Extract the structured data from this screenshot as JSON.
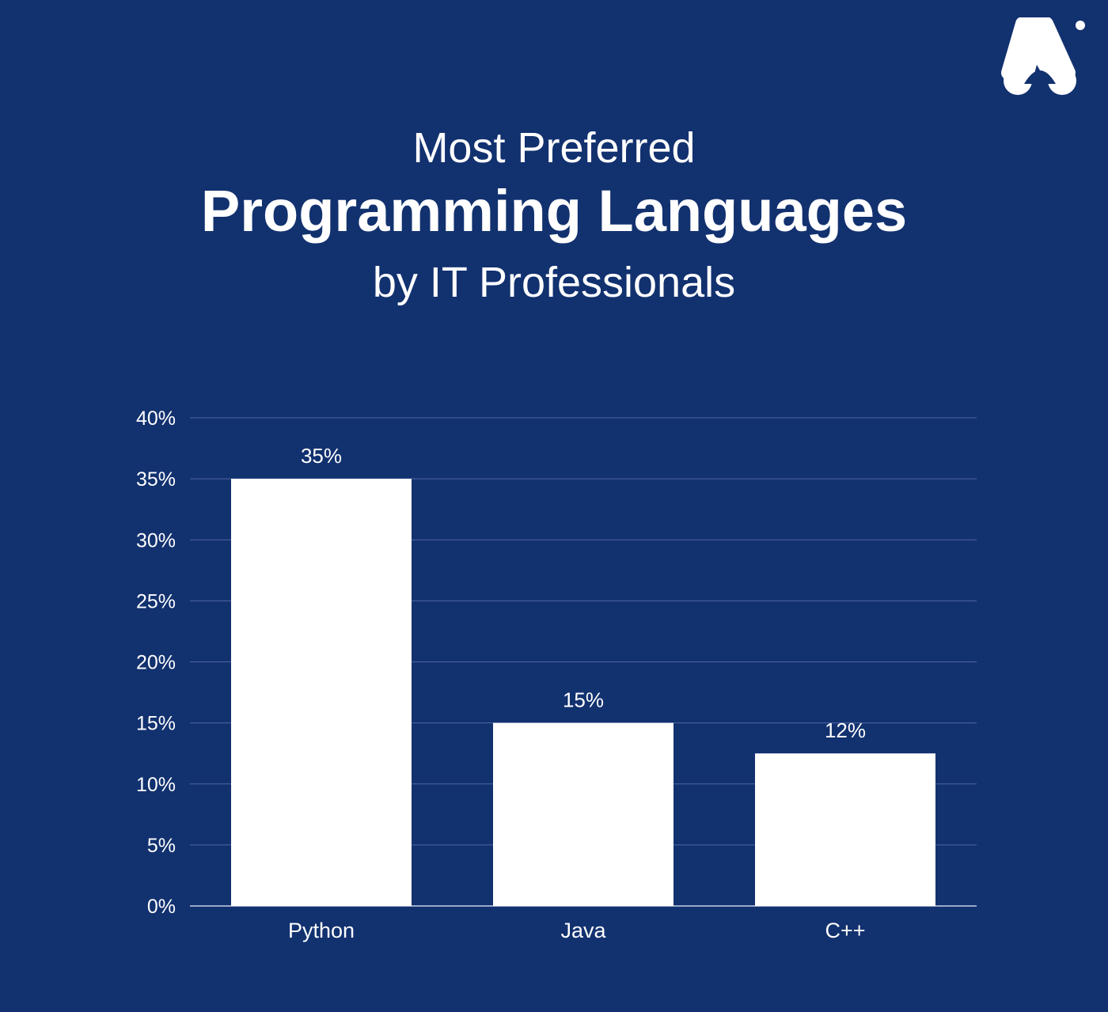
{
  "header": {
    "title_top": "Most Preferred",
    "title_main": "Programming Languages",
    "title_bottom": "by IT Professionals"
  },
  "colors": {
    "background": "#12316f",
    "bar": "#ffffff",
    "text": "#ffffff",
    "gridline": "#4f67a0"
  },
  "logo": {
    "icon": "brand-logo-icon"
  },
  "chart_data": {
    "type": "bar",
    "categories": [
      "Python",
      "Java",
      "C++"
    ],
    "values": [
      35,
      15,
      12.5
    ],
    "data_labels": [
      "35%",
      "15%",
      "12%"
    ],
    "ylim": [
      0,
      40
    ],
    "yticks": [
      0,
      5,
      10,
      15,
      20,
      25,
      30,
      35,
      40
    ],
    "ytick_labels": [
      "0%",
      "5%",
      "10%",
      "15%",
      "20%",
      "25%",
      "30%",
      "35%",
      "40%"
    ],
    "grid": true,
    "legend": "none",
    "title": "",
    "xlabel": "",
    "ylabel": ""
  }
}
